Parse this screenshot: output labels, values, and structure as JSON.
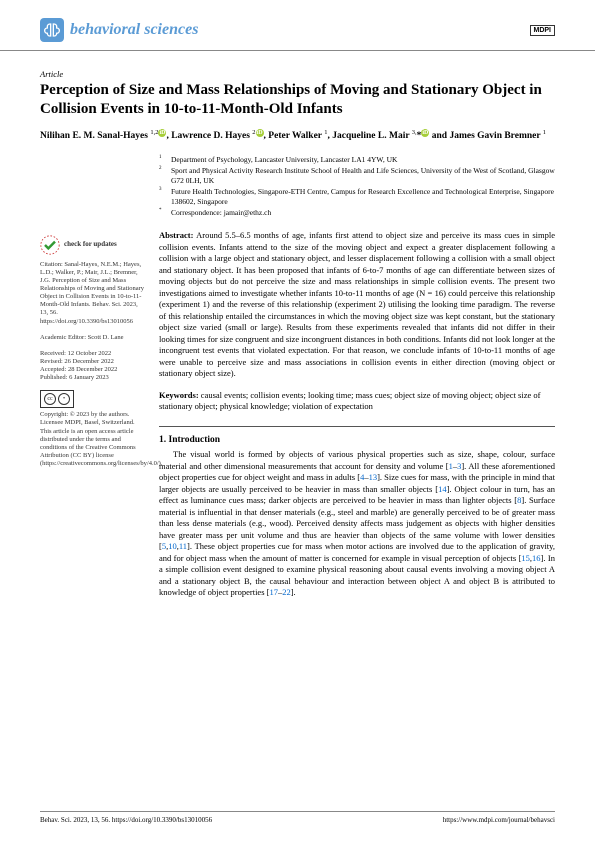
{
  "header": {
    "journal_name": "behavioral sciences",
    "publisher_logo": "MDPI"
  },
  "article": {
    "type": "Article",
    "title": "Perception of Size and Mass Relationships of Moving and Stationary Object in Collision Events in 10-to-11-Month-Old Infants",
    "authors_html": "Nilihan E. M. Sanal-Hayes <sup>1,2</sup><span class='orcid'>iD</span>, Lawrence D. Hayes <sup>2</sup><span class='orcid'>iD</span>, Peter Walker <sup>1</sup>, Jacqueline L. Mair <sup>3,</sup>*<span class='orcid'>iD</span> and James Gavin Bremner <sup>1</sup>"
  },
  "affiliations": [
    {
      "n": "1",
      "text": "Department of Psychology, Lancaster University, Lancaster LA1 4YW, UK"
    },
    {
      "n": "2",
      "text": "Sport and Physical Activity Research Institute School of Health and Life Sciences, University of the West of Scotland, Glasgow G72 0LH, UK"
    },
    {
      "n": "3",
      "text": "Future Health Technologies, Singapore-ETH Centre, Campus for Research Excellence and Technological Enterprise, Singapore 138602, Singapore"
    },
    {
      "n": "*",
      "text": "Correspondence: jamair@ethz.ch"
    }
  ],
  "abstract": {
    "label": "Abstract:",
    "text": "Around 5.5–6.5 months of age, infants first attend to object size and perceive its mass cues in simple collision events. Infants attend to the size of the moving object and expect a greater displacement following a collision with a large object and stationary object, and lesser displacement following a collision with a small object and stationary object. It has been proposed that infants of 6-to-7 months of age can differentiate between sizes of moving objects but do not perceive the size and mass relationships in simple collision events. The present two investigations aimed to investigate whether infants 10-to-11 months of age (N = 16) could perceive this relationship (experiment 1) and the reverse of this relationship (experiment 2) utilising the looking time paradigm. The reverse of this relationship entailed the circumstances in which the moving object size was kept constant, but the stationary object size varied (small or large). Results from these experiments revealed that infants did not differ in their looking times for size congruent and size incongruent distances in both conditions. Infants did not look longer at the incongruent test events that violated expectation. For that reason, we conclude infants of 10-to-11 months of age were unable to perceive size and mass associations in collision events in either direction (moving object or stationary object size)."
  },
  "keywords": {
    "label": "Keywords:",
    "text": "causal events; collision events; looking time; mass cues; object size of moving object; object size of stationary object; physical knowledge; violation of expectation"
  },
  "sidebar": {
    "check_updates": "check for updates",
    "citation": "Citation: Sanal-Hayes, N.E.M.; Hayes, L.D.; Walker, P.; Mair, J.L.; Bremner, J.G. Perception of Size and Mass Relationships of Moving and Stationary Object in Collision Events in 10-to-11-Month-Old Infants. Behav. Sci. 2023, 13, 56. https://doi.org/10.3390/bs13010056",
    "editor": "Academic Editor: Scott D. Lane",
    "received": "Received: 12 October 2022",
    "revised": "Revised: 26 December 2022",
    "accepted": "Accepted: 28 December 2022",
    "published": "Published: 6 January 2023",
    "copyright": "Copyright: © 2023 by the authors. Licensee MDPI, Basel, Switzerland. This article is an open access article distributed under the terms and conditions of the Creative Commons Attribution (CC BY) license (https://creativecommons.org/licenses/by/4.0/)."
  },
  "intro": {
    "heading": "1. Introduction",
    "text_html": "The visual world is formed by objects of various physical properties such as size, shape, colour, surface material and other dimensional measurements that account for density and volume [<span class='ref-link'>1</span>–<span class='ref-link'>3</span>]. All these aforementioned object properties cue for object weight and mass in adults [<span class='ref-link'>4</span>–<span class='ref-link'>13</span>]. Size cues for mass, with the principle in mind that larger objects are usually perceived to be heavier in mass than smaller objects [<span class='ref-link'>14</span>]. Object colour in turn, has an effect as luminance cues mass; darker objects are perceived to be heavier in mass than lighter objects [<span class='ref-link'>8</span>]. Surface material is influential in that denser materials (e.g., steel and marble) are generally perceived to be of greater mass than less dense materials (e.g., wood). Perceived density affects mass judgement as objects with higher densities have greater mass per unit volume and thus are heavier than objects of the same volume with lower densities [<span class='ref-link'>5</span>,<span class='ref-link'>10</span>,<span class='ref-link'>11</span>]. These object properties cue for mass when motor actions are involved due to the application of gravity, and for object mass when the amount of matter is concerned for example in visual perception of objects [<span class='ref-link'>15</span>,<span class='ref-link'>16</span>]. In a simple collision event designed to examine physical reasoning about causal events involving a moving object A and a stationary object B, the causal behaviour and interaction between object A and object B is attributed to knowledge of object properties [<span class='ref-link'>17</span>–<span class='ref-link'>22</span>]."
  },
  "footer": {
    "left": "Behav. Sci. 2023, 13, 56. https://doi.org/10.3390/bs13010056",
    "right": "https://www.mdpi.com/journal/behavsci"
  },
  "colors": {
    "journal": "#5b9bd5",
    "orcid": "#a6ce39",
    "link": "#0066cc"
  }
}
